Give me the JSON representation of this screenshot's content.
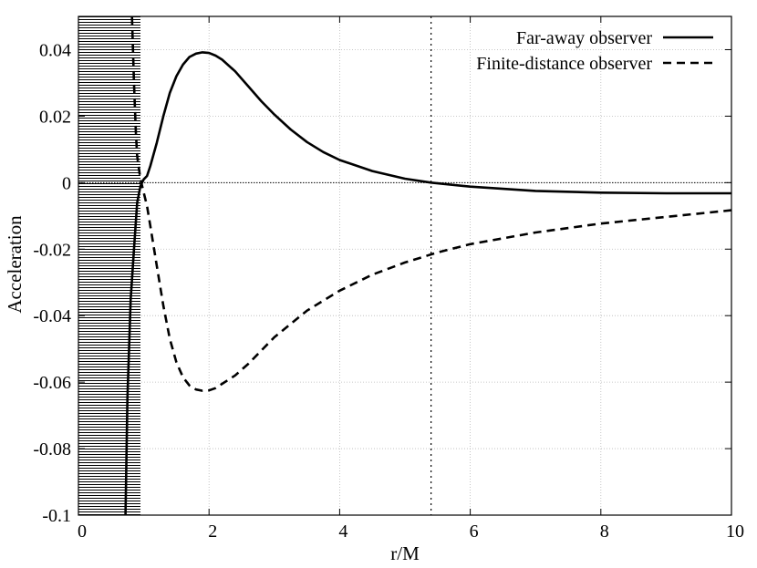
{
  "chart_data": {
    "type": "line",
    "xlabel": "r/M",
    "ylabel": "Acceleration",
    "xlim": [
      0,
      10
    ],
    "ylim": [
      -0.1,
      0.05
    ],
    "grid": true,
    "legend_position": "top-right",
    "x_ticks": [
      {
        "value": 0,
        "label": "0"
      },
      {
        "value": 2,
        "label": "2"
      },
      {
        "value": 4,
        "label": "4"
      },
      {
        "value": 6,
        "label": "6"
      },
      {
        "value": 8,
        "label": "8"
      },
      {
        "value": 10,
        "label": "10"
      }
    ],
    "y_ticks": [
      {
        "value": 0.04,
        "label": "0.04"
      },
      {
        "value": 0.02,
        "label": "0.02"
      },
      {
        "value": 0,
        "label": "0"
      },
      {
        "value": -0.02,
        "label": "-0.02"
      },
      {
        "value": -0.04,
        "label": "-0.04"
      },
      {
        "value": -0.06,
        "label": "-0.06"
      },
      {
        "value": -0.08,
        "label": "-0.08"
      },
      {
        "value": -0.1,
        "label": "-0.1"
      }
    ],
    "shaded_region": {
      "x": [
        0,
        0.95
      ]
    },
    "reference_lines": {
      "horizontal_y": 0,
      "vertical_x": 5.4
    },
    "series": [
      {
        "name": "Far-away observer",
        "style": "solid",
        "x": [
          0.72,
          0.75,
          0.8,
          0.85,
          0.9,
          0.95,
          1.0,
          1.05,
          1.1,
          1.2,
          1.3,
          1.4,
          1.5,
          1.6,
          1.7,
          1.8,
          1.9,
          2.0,
          2.1,
          2.2,
          2.4,
          2.6,
          2.8,
          3.0,
          3.25,
          3.5,
          3.75,
          4.0,
          4.5,
          5.0,
          5.4,
          6.0,
          7.0,
          8.0,
          9.0,
          10.0
        ],
        "y": [
          -0.1,
          -0.065,
          -0.035,
          -0.02,
          -0.006,
          -0.001,
          0.001,
          0.002,
          0.005,
          0.012,
          0.02,
          0.027,
          0.032,
          0.0355,
          0.0378,
          0.0388,
          0.0392,
          0.039,
          0.0382,
          0.037,
          0.0335,
          0.029,
          0.0245,
          0.0205,
          0.016,
          0.0122,
          0.0092,
          0.0068,
          0.0035,
          0.0012,
          0.0,
          -0.0012,
          -0.0025,
          -0.003,
          -0.0032,
          -0.0032
        ]
      },
      {
        "name": "Finite-distance observer",
        "style": "dashed",
        "x": [
          0.82,
          0.85,
          0.88,
          0.9,
          0.95,
          1.0,
          1.05,
          1.1,
          1.2,
          1.3,
          1.4,
          1.5,
          1.6,
          1.7,
          1.8,
          1.9,
          2.0,
          2.1,
          2.2,
          2.4,
          2.6,
          2.8,
          3.0,
          3.5,
          4.0,
          4.5,
          5.0,
          5.5,
          6.0,
          7.0,
          8.0,
          9.0,
          10.0
        ],
        "y": [
          0.05,
          0.03,
          0.015,
          0.008,
          0.001,
          -0.003,
          -0.007,
          -0.013,
          -0.025,
          -0.037,
          -0.047,
          -0.054,
          -0.0585,
          -0.061,
          -0.0622,
          -0.0626,
          -0.0625,
          -0.0618,
          -0.0605,
          -0.058,
          -0.0545,
          -0.0505,
          -0.0465,
          -0.0385,
          -0.0325,
          -0.0277,
          -0.024,
          -0.021,
          -0.0185,
          -0.015,
          -0.0123,
          -0.0103,
          -0.0083
        ]
      }
    ]
  }
}
